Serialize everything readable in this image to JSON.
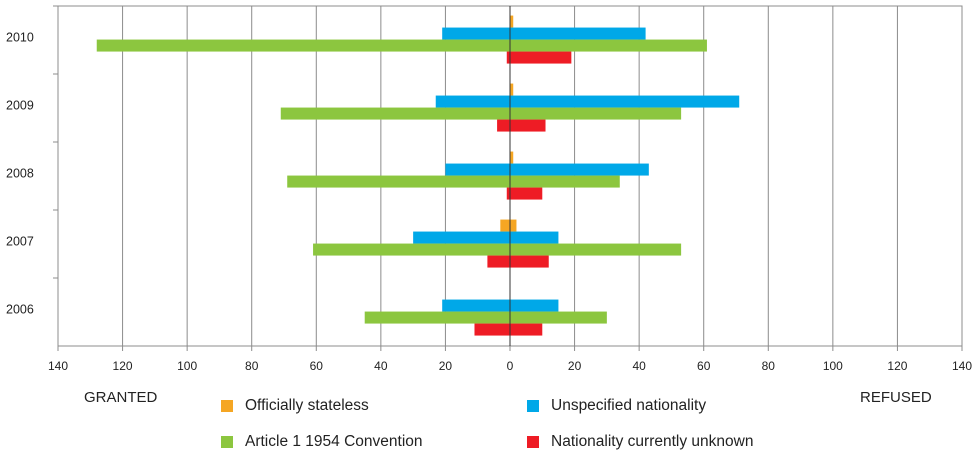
{
  "chart_data": {
    "type": "bar",
    "orientation": "horizontal-diverging",
    "categories": [
      "2010",
      "2009",
      "2008",
      "2007",
      "2006"
    ],
    "series": [
      {
        "name": "Officially stateless",
        "color": "#f5a623",
        "granted": [
          0,
          0,
          0,
          3,
          0
        ],
        "refused": [
          1,
          1,
          1,
          2,
          0
        ]
      },
      {
        "name": "Unspecified nationality",
        "color": "#00a8e8",
        "granted": [
          21,
          23,
          20,
          30,
          21
        ],
        "refused": [
          42,
          71,
          43,
          15,
          15
        ]
      },
      {
        "name": "Article 1 1954 Convention",
        "color": "#8cc63f",
        "granted": [
          128,
          71,
          69,
          61,
          45
        ],
        "refused": [
          61,
          53,
          34,
          53,
          30
        ]
      },
      {
        "name": "Nationality  currently unknown",
        "color": "#ee1c25",
        "granted": [
          1,
          4,
          1,
          7,
          11
        ],
        "refused": [
          19,
          11,
          10,
          12,
          10
        ]
      }
    ],
    "xlim": [
      -140,
      140
    ],
    "xticks": [
      "140",
      "120",
      "100",
      "80",
      "60",
      "40",
      "20",
      "0",
      "20",
      "40",
      "60",
      "80",
      "100",
      "120",
      "140"
    ],
    "grid": true,
    "legend_position": "bottom"
  },
  "labels": {
    "left": "GRANTED",
    "right": "REFUSED"
  }
}
